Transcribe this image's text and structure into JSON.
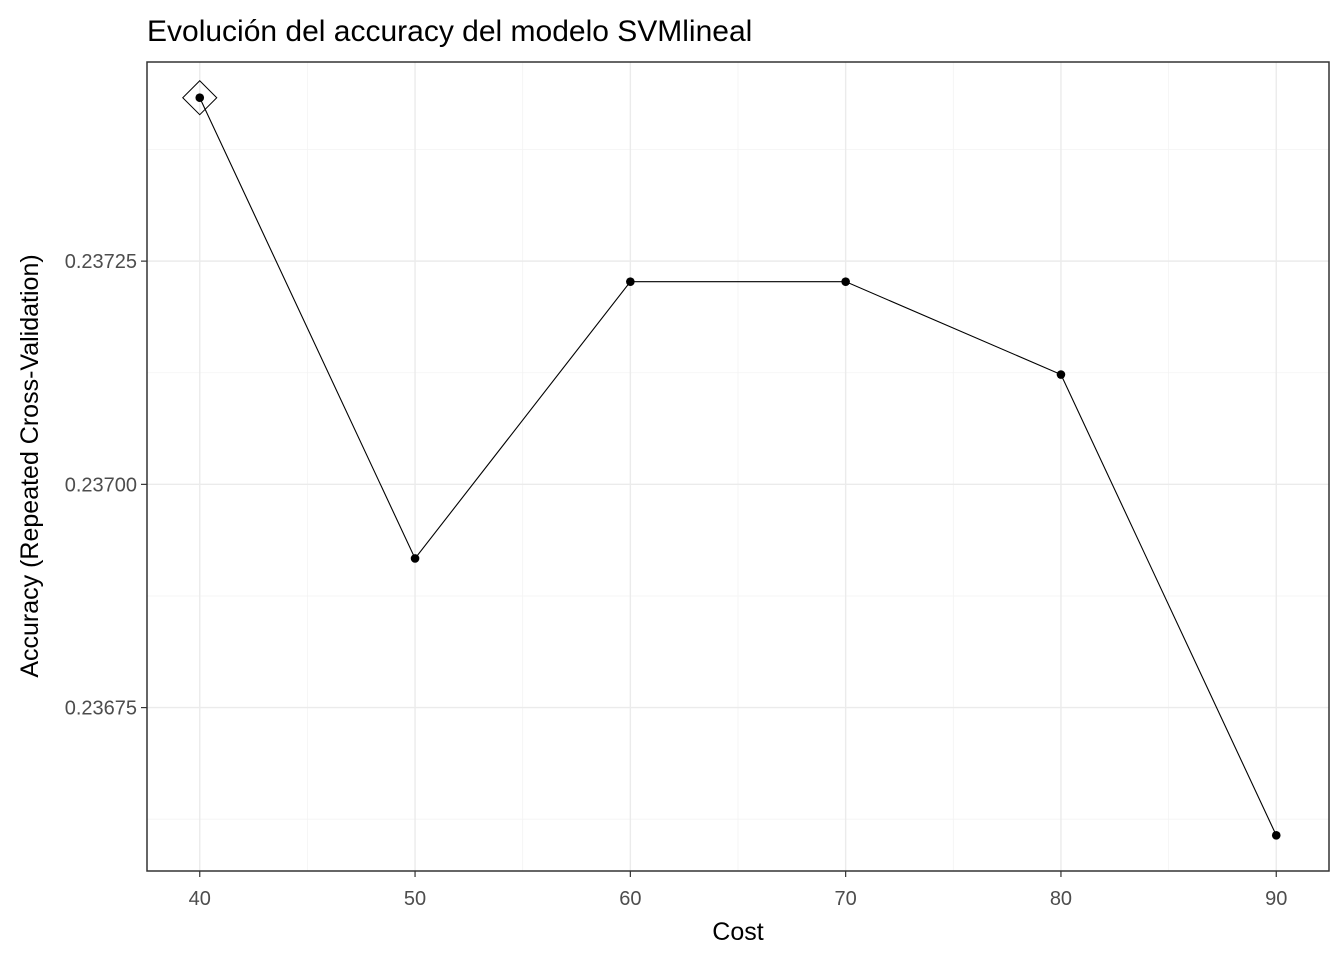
{
  "chart_data": {
    "type": "line",
    "title": "Evolución del accuracy del modelo SVMlineal",
    "xlabel": "Cost",
    "ylabel": "Accuracy (Repeated Cross-Validation)",
    "x": [
      40,
      50,
      60,
      70,
      80,
      90
    ],
    "series": [
      {
        "values": [
          0.237433,
          0.236917,
          0.237227,
          0.237227,
          0.237123,
          0.236607
        ]
      }
    ],
    "best": {
      "x": 40,
      "y": 0.237433,
      "marker": "diamond"
    },
    "xticks": [
      40,
      50,
      60,
      70,
      80,
      90
    ],
    "xtick_labels": [
      "40",
      "50",
      "60",
      "70",
      "80",
      "90"
    ],
    "yticks": [
      0.23675,
      0.237,
      0.23725
    ],
    "ytick_labels": [
      "0.23675",
      "0.23700",
      "0.23725"
    ],
    "xlim": [
      37.55,
      92.45
    ],
    "ylim": [
      0.236567,
      0.237473
    ],
    "grid": true,
    "legend": "none",
    "colors": {
      "line": "#000000",
      "point": "#000000",
      "grid": "#ebebeb",
      "border": "#333333"
    }
  }
}
